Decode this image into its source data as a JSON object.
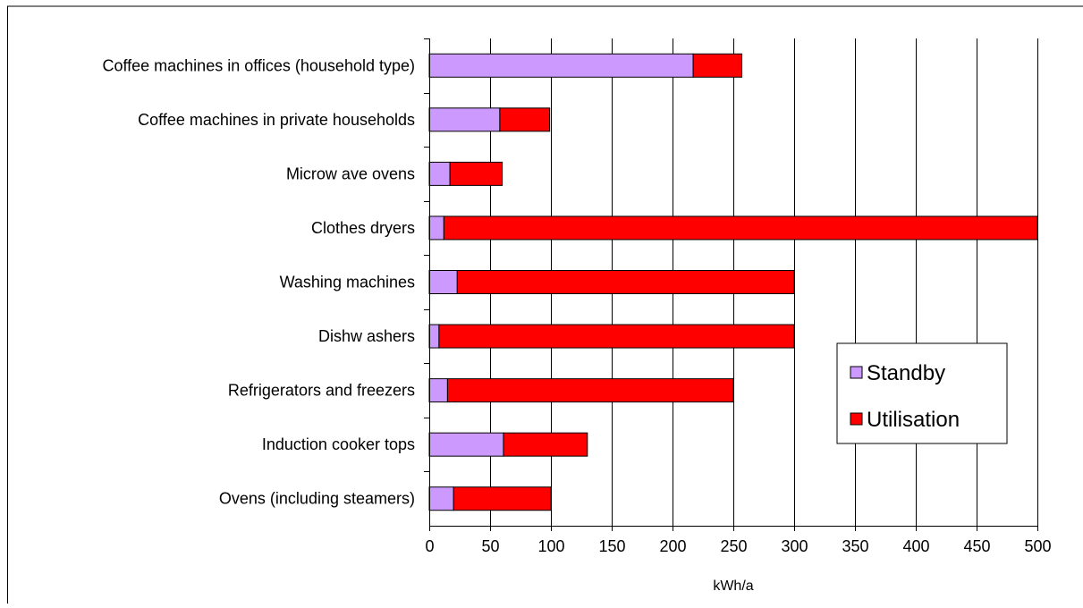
{
  "chart_data": {
    "type": "bar",
    "orientation": "horizontal",
    "stacked": true,
    "title": "",
    "xlabel": "kWh/a",
    "ylabel": "",
    "xlim": [
      0,
      500
    ],
    "xticks": [
      "0",
      "50",
      "100",
      "150",
      "200",
      "250",
      "300",
      "350",
      "400",
      "450",
      "500"
    ],
    "grid": "vertical",
    "legend_position": "right",
    "categories": [
      "Coffee machines in offices (household type)",
      "Coffee machines in private households",
      "Microw ave ovens",
      "Clothes dryers",
      "Washing machines",
      "Dishw ashers",
      "Refrigerators and freezers",
      "Induction cooker tops",
      "Ovens (including steamers)"
    ],
    "series": [
      {
        "name": "Standby",
        "color": "#cc99ff",
        "values": [
          217,
          58,
          17,
          12,
          23,
          8,
          15,
          61,
          20
        ]
      },
      {
        "name": "Utilisation",
        "color": "#ff0000",
        "values": [
          40,
          41,
          43,
          488,
          277,
          292,
          235,
          69,
          80
        ]
      }
    ]
  }
}
